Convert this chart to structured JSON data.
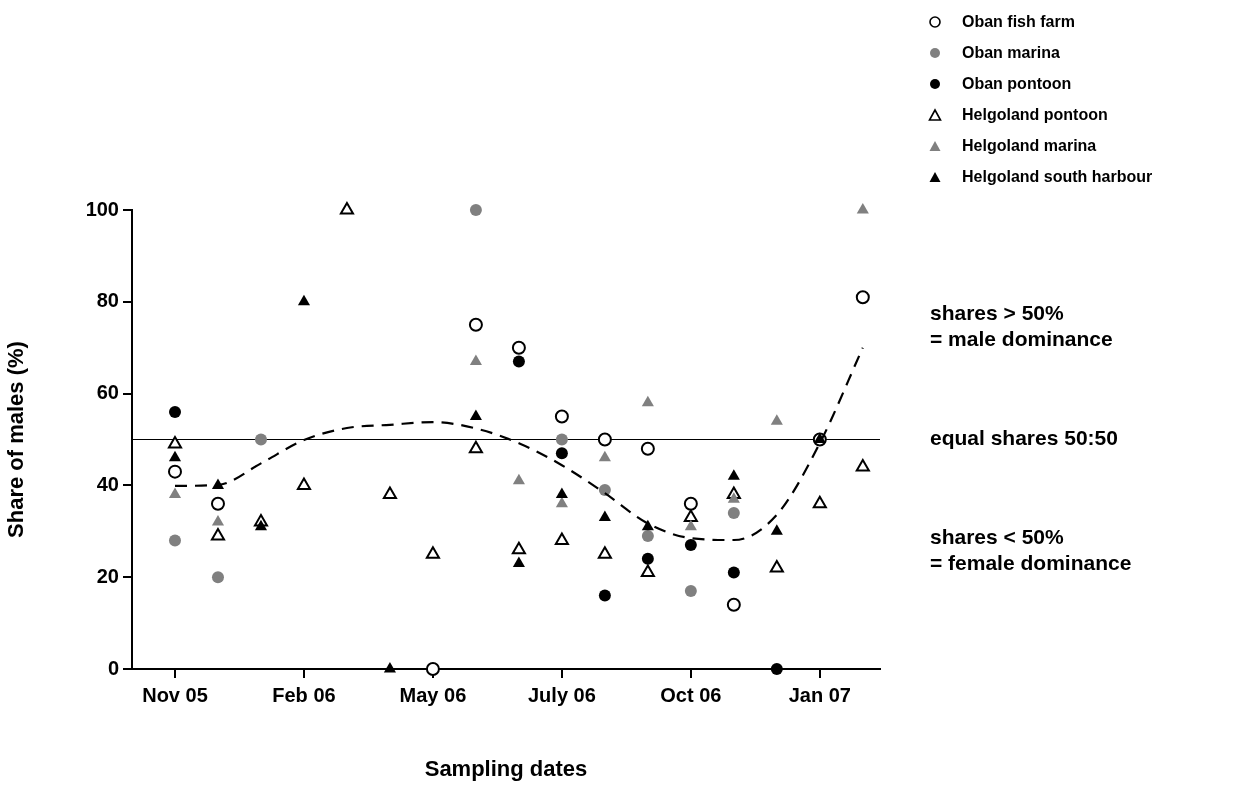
{
  "chart_data": {
    "type": "scatter",
    "xlabel": "Sampling dates",
    "ylabel": "Share of males (%)",
    "categories": [
      "Nov 05",
      null,
      null,
      "Feb 06",
      null,
      null,
      "May 06",
      null,
      null,
      "July 06",
      null,
      null,
      "Oct 06",
      null,
      null,
      "Jan 07",
      null
    ],
    "ylim": [
      0,
      100
    ],
    "yticks": [
      0,
      20,
      40,
      60,
      80,
      100
    ],
    "grid": false,
    "legend": "top right",
    "series": [
      {
        "name": "Oban fish farm",
        "color": "#ffffff",
        "marker": "circle",
        "values": [
          43,
          36,
          null,
          null,
          null,
          null,
          0,
          75,
          70,
          55,
          50,
          48,
          36,
          14,
          null,
          50,
          81
        ]
      },
      {
        "name": "Oban marina",
        "color": "#808080",
        "marker": "circle",
        "values": [
          28,
          20,
          50,
          null,
          null,
          null,
          null,
          100,
          null,
          50,
          39,
          29,
          17,
          34,
          null,
          null,
          null
        ]
      },
      {
        "name": "Oban pontoon",
        "color": "#000000",
        "marker": "circle",
        "values": [
          56,
          null,
          null,
          null,
          null,
          null,
          null,
          null,
          67,
          47,
          16,
          24,
          27,
          21,
          0,
          null,
          null
        ]
      },
      {
        "name": "Helgoland pontoon",
        "color": "#ffffff",
        "marker": "triangle",
        "values": [
          49,
          29,
          32,
          40,
          100,
          38,
          25,
          48,
          26,
          28,
          25,
          21,
          33,
          38,
          22,
          36,
          44
        ]
      },
      {
        "name": "Helgoland marina",
        "color": "#808080",
        "marker": "triangle",
        "values": [
          38,
          32,
          null,
          null,
          null,
          null,
          null,
          67,
          41,
          36,
          46,
          58,
          31,
          37,
          54,
          null,
          100
        ]
      },
      {
        "name": "Helgoland south harbour",
        "color": "#000000",
        "marker": "triangle",
        "values": [
          46,
          40,
          31,
          80,
          null,
          0,
          null,
          55,
          23,
          38,
          33,
          31,
          null,
          42,
          30,
          50,
          null
        ]
      },
      {
        "type": "line",
        "color": "#000000",
        "marker": "none",
        "line_style": "dashed",
        "values": [
          39.9,
          40.1,
          44.8,
          49.9,
          52.5,
          53.2,
          53.8,
          52.4,
          49.2,
          44.4,
          38.3,
          31.7,
          28.5,
          28.1,
          33.6,
          49.2,
          70
        ]
      }
    ],
    "ref_lines": [
      {
        "axis": "y",
        "value": 50,
        "label": "equal shares 50:50",
        "color": "#000000",
        "line_style": "solid"
      }
    ],
    "annotations": [
      "shares > 50%\n= male dominance",
      "shares < 50%\n= female dominance"
    ]
  }
}
